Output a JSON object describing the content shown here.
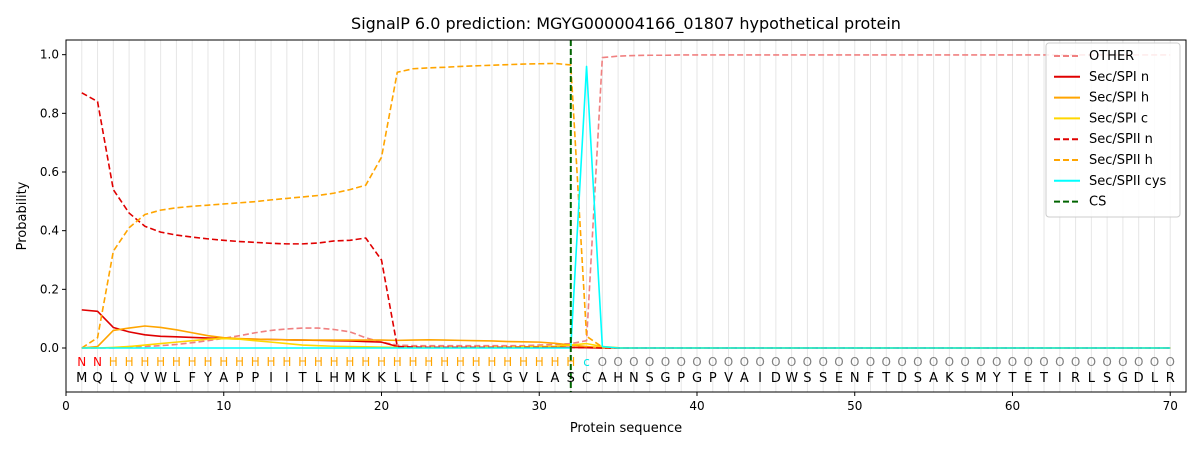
{
  "chart_data": {
    "type": "line",
    "title": "SignalP 6.0 prediction: MGYG000004166_01807 hypothetical protein",
    "xlabel": "Protein sequence",
    "ylabel": "Probability",
    "xlim": [
      0,
      71
    ],
    "ylim": [
      -0.15,
      1.05
    ],
    "x_ticks": [
      0,
      10,
      20,
      30,
      40,
      50,
      60,
      70
    ],
    "y_ticks": [
      0.0,
      0.2,
      0.4,
      0.6,
      0.8,
      1.0
    ],
    "grid": "vertical lines at each residue",
    "legend_position": "top-right",
    "sequence": [
      "M",
      "Q",
      "L",
      "Q",
      "V",
      "W",
      "L",
      "F",
      "Y",
      "A",
      "P",
      "P",
      "I",
      "I",
      "T",
      "L",
      "H",
      "M",
      "K",
      "K",
      "L",
      "L",
      "F",
      "L",
      "C",
      "S",
      "L",
      "G",
      "V",
      "L",
      "A",
      "S",
      "C",
      "A",
      "H",
      "N",
      "S",
      "G",
      "P",
      "G",
      "P",
      "V",
      "A",
      "I",
      "D",
      "W",
      "S",
      "S",
      "E",
      "N",
      "F",
      "T",
      "D",
      "S",
      "A",
      "K",
      "S",
      "M",
      "Y",
      "T",
      "E",
      "T",
      "I",
      "R",
      "L",
      "S",
      "G",
      "D",
      "L",
      "R"
    ],
    "region_labels": [
      "N",
      "N",
      "H",
      "H",
      "H",
      "H",
      "H",
      "H",
      "H",
      "H",
      "H",
      "H",
      "H",
      "H",
      "H",
      "H",
      "H",
      "H",
      "H",
      "H",
      "H",
      "H",
      "H",
      "H",
      "H",
      "H",
      "H",
      "H",
      "H",
      "H",
      "H",
      "H",
      "c",
      "O",
      "O",
      "O",
      "O",
      "O",
      "O",
      "O",
      "O",
      "O",
      "O",
      "O",
      "O",
      "O",
      "O",
      "O",
      "O",
      "O",
      "O",
      "O",
      "O",
      "O",
      "O",
      "O",
      "O",
      "O",
      "O",
      "O",
      "O",
      "O",
      "O",
      "O",
      "O",
      "O",
      "O",
      "O",
      "O",
      "O"
    ],
    "region_colors": {
      "N": "#ff0000",
      "H": "#ffa500",
      "c": "#00e5e5",
      "O": "#808080"
    },
    "cleavage_site": 32,
    "series": [
      {
        "name": "OTHER",
        "color": "#f08080",
        "dash": "dashed",
        "values": [
          0.0,
          0.0,
          0.0,
          0.005,
          0.005,
          0.008,
          0.012,
          0.018,
          0.025,
          0.033,
          0.042,
          0.052,
          0.06,
          0.065,
          0.068,
          0.068,
          0.063,
          0.055,
          0.035,
          0.02,
          0.01,
          0.008,
          0.008,
          0.008,
          0.008,
          0.008,
          0.008,
          0.008,
          0.008,
          0.01,
          0.012,
          0.015,
          0.025,
          0.99,
          0.995,
          0.997,
          0.998,
          0.998,
          0.999,
          0.999,
          0.999,
          0.999,
          0.999,
          0.999,
          0.999,
          0.999,
          0.999,
          0.999,
          0.999,
          0.999,
          0.999,
          0.999,
          0.999,
          0.999,
          0.999,
          0.999,
          0.999,
          0.999,
          0.999,
          0.999,
          0.999,
          0.999,
          0.999,
          0.999,
          0.999,
          0.999,
          0.999,
          0.999,
          0.999,
          0.999
        ]
      },
      {
        "name": "Sec/SPI n",
        "color": "#e00000",
        "dash": "solid",
        "values": [
          0.13,
          0.125,
          0.07,
          0.055,
          0.045,
          0.04,
          0.038,
          0.036,
          0.034,
          0.032,
          0.031,
          0.03,
          0.029,
          0.028,
          0.027,
          0.026,
          0.025,
          0.024,
          0.022,
          0.02,
          0.005,
          0.003,
          0.002,
          0.002,
          0.002,
          0.002,
          0.002,
          0.002,
          0.002,
          0.002,
          0.002,
          0.002,
          0.001,
          0.0,
          0.0,
          0.0,
          0.0,
          0.0,
          0.0,
          0.0,
          0.0,
          0.0,
          0.0,
          0.0,
          0.0,
          0.0,
          0.0,
          0.0,
          0.0,
          0.0,
          0.0,
          0.0,
          0.0,
          0.0,
          0.0,
          0.0,
          0.0,
          0.0,
          0.0,
          0.0,
          0.0,
          0.0,
          0.0,
          0.0,
          0.0,
          0.0,
          0.0,
          0.0,
          0.0,
          0.0
        ]
      },
      {
        "name": "Sec/SPI h",
        "color": "#ffa500",
        "dash": "solid",
        "values": [
          0.0,
          0.005,
          0.06,
          0.068,
          0.075,
          0.07,
          0.062,
          0.052,
          0.042,
          0.035,
          0.032,
          0.03,
          0.029,
          0.028,
          0.027,
          0.027,
          0.027,
          0.027,
          0.027,
          0.027,
          0.026,
          0.027,
          0.028,
          0.027,
          0.026,
          0.025,
          0.024,
          0.022,
          0.021,
          0.02,
          0.016,
          0.01,
          0.005,
          0.001,
          0.0,
          0.0,
          0.0,
          0.0,
          0.0,
          0.0,
          0.0,
          0.0,
          0.0,
          0.0,
          0.0,
          0.0,
          0.0,
          0.0,
          0.0,
          0.0,
          0.0,
          0.0,
          0.0,
          0.0,
          0.0,
          0.0,
          0.0,
          0.0,
          0.0,
          0.0,
          0.0,
          0.0,
          0.0,
          0.0,
          0.0,
          0.0,
          0.0,
          0.0,
          0.0,
          0.0
        ]
      },
      {
        "name": "Sec/SPI c",
        "color": "#ffd700",
        "dash": "solid",
        "values": [
          0.0,
          0.0,
          0.002,
          0.005,
          0.01,
          0.015,
          0.02,
          0.025,
          0.03,
          0.032,
          0.03,
          0.025,
          0.02,
          0.015,
          0.01,
          0.008,
          0.006,
          0.005,
          0.004,
          0.003,
          0.002,
          0.002,
          0.002,
          0.002,
          0.002,
          0.002,
          0.003,
          0.003,
          0.004,
          0.005,
          0.006,
          0.01,
          0.015,
          0.005,
          0.001,
          0.0,
          0.0,
          0.0,
          0.0,
          0.0,
          0.0,
          0.0,
          0.0,
          0.0,
          0.0,
          0.0,
          0.0,
          0.0,
          0.0,
          0.0,
          0.0,
          0.0,
          0.0,
          0.0,
          0.0,
          0.0,
          0.0,
          0.0,
          0.0,
          0.0,
          0.0,
          0.0,
          0.0,
          0.0,
          0.0,
          0.0,
          0.0,
          0.0,
          0.0,
          0.0
        ]
      },
      {
        "name": "Sec/SPII n",
        "color": "#e00000",
        "dash": "dashed",
        "values": [
          0.87,
          0.84,
          0.54,
          0.46,
          0.415,
          0.395,
          0.385,
          0.378,
          0.372,
          0.367,
          0.363,
          0.36,
          0.357,
          0.355,
          0.355,
          0.358,
          0.365,
          0.367,
          0.375,
          0.3,
          0.005,
          0.003,
          0.002,
          0.002,
          0.002,
          0.002,
          0.002,
          0.002,
          0.002,
          0.002,
          0.002,
          0.002,
          0.001,
          0.0,
          0.0,
          0.0,
          0.0,
          0.0,
          0.0,
          0.0,
          0.0,
          0.0,
          0.0,
          0.0,
          0.0,
          0.0,
          0.0,
          0.0,
          0.0,
          0.0,
          0.0,
          0.0,
          0.0,
          0.0,
          0.0,
          0.0,
          0.0,
          0.0,
          0.0,
          0.0,
          0.0,
          0.0,
          0.0,
          0.0,
          0.0,
          0.0,
          0.0,
          0.0,
          0.0,
          0.0
        ]
      },
      {
        "name": "Sec/SPII h",
        "color": "#ffa500",
        "dash": "dashed",
        "values": [
          0.0,
          0.035,
          0.33,
          0.41,
          0.455,
          0.47,
          0.478,
          0.483,
          0.487,
          0.491,
          0.495,
          0.499,
          0.505,
          0.51,
          0.515,
          0.52,
          0.528,
          0.54,
          0.555,
          0.65,
          0.94,
          0.952,
          0.955,
          0.957,
          0.96,
          0.962,
          0.964,
          0.966,
          0.968,
          0.969,
          0.97,
          0.965,
          0.04,
          0.003,
          0.0,
          0.0,
          0.0,
          0.0,
          0.0,
          0.0,
          0.0,
          0.0,
          0.0,
          0.0,
          0.0,
          0.0,
          0.0,
          0.0,
          0.0,
          0.0,
          0.0,
          0.0,
          0.0,
          0.0,
          0.0,
          0.0,
          0.0,
          0.0,
          0.0,
          0.0,
          0.0,
          0.0,
          0.0,
          0.0,
          0.0,
          0.0,
          0.0,
          0.0,
          0.0,
          0.0
        ]
      },
      {
        "name": "Sec/SPII cys",
        "color": "#00ffff",
        "dash": "solid",
        "values": [
          0.0,
          0.0,
          0.0,
          0.0,
          0.0,
          0.0,
          0.0,
          0.0,
          0.0,
          0.0,
          0.0,
          0.0,
          0.0,
          0.0,
          0.0,
          0.0,
          0.0,
          0.0,
          0.0,
          0.0,
          0.0,
          0.0,
          0.0,
          0.0,
          0.0,
          0.0,
          0.0,
          0.0,
          0.0,
          0.0,
          0.0,
          0.0,
          0.96,
          0.005,
          0.0,
          0.0,
          0.0,
          0.0,
          0.0,
          0.0,
          0.0,
          0.0,
          0.0,
          0.0,
          0.0,
          0.0,
          0.0,
          0.0,
          0.0,
          0.0,
          0.0,
          0.0,
          0.0,
          0.0,
          0.0,
          0.0,
          0.0,
          0.0,
          0.0,
          0.0,
          0.0,
          0.0,
          0.0,
          0.0,
          0.0,
          0.0,
          0.0,
          0.0,
          0.0,
          0.0
        ]
      },
      {
        "name": "CS",
        "color": "#006400",
        "dash": "dashed",
        "type": "vline",
        "x": 32
      }
    ]
  }
}
